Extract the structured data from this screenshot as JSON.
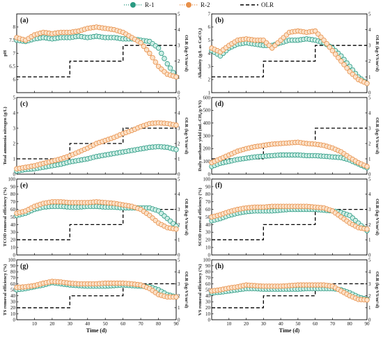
{
  "legend": {
    "items": [
      {
        "label": "R-1",
        "color": "#2a9a82",
        "style": "dotted-marker"
      },
      {
        "label": "R-2",
        "color": "#e8904a",
        "style": "dotted-marker"
      },
      {
        "label": "OLR",
        "color": "#000000",
        "style": "dashed"
      }
    ]
  },
  "colors": {
    "r1": "#2a9a82",
    "r1_light": "#cfeee6",
    "r2": "#e8904a",
    "r2_light": "#fbe1c8",
    "olr": "#000000"
  },
  "olr_step": {
    "x": [
      0,
      30,
      30,
      60,
      60,
      90
    ],
    "y": [
      1,
      1,
      2,
      2,
      3,
      3
    ]
  },
  "chart_data": [
    {
      "type": "line",
      "panel": "(a)",
      "ylabel": "pH",
      "y2label": "OLR (kg-VS/m³/d)",
      "xlim": [
        0,
        90
      ],
      "ylim": [
        5.5,
        8.5
      ],
      "yticks": [
        6.0,
        6.5,
        7.0,
        7.5,
        8.0
      ],
      "y2lim": [
        0,
        5
      ],
      "y2ticks": [
        0,
        1,
        2,
        3,
        4,
        5
      ],
      "x": [
        0,
        5,
        10,
        15,
        20,
        25,
        30,
        35,
        40,
        45,
        50,
        55,
        60,
        65,
        70,
        75,
        80,
        85,
        90
      ],
      "series": [
        {
          "name": "R-1",
          "values": [
            7.5,
            7.45,
            7.55,
            7.6,
            7.55,
            7.6,
            7.6,
            7.65,
            7.6,
            7.65,
            7.6,
            7.6,
            7.55,
            7.55,
            7.5,
            7.45,
            7.2,
            6.6,
            6.1
          ]
        },
        {
          "name": "R-2",
          "values": [
            7.6,
            7.5,
            7.7,
            7.8,
            7.75,
            7.8,
            7.8,
            7.85,
            7.95,
            8.0,
            7.95,
            7.9,
            7.8,
            7.6,
            7.4,
            7.0,
            6.5,
            6.2,
            6.1
          ]
        }
      ]
    },
    {
      "type": "line",
      "panel": "(b)",
      "ylabel": "Alkalinity (g/L as CaCO₃)",
      "y2label": "OLR (kg-VS/m³/d)",
      "xlim": [
        0,
        90
      ],
      "ylim": [
        1,
        7
      ],
      "yticks": [
        1,
        2,
        3,
        4,
        5,
        6,
        7
      ],
      "y2lim": [
        0,
        5
      ],
      "y2ticks": [
        0,
        1,
        2,
        3,
        4,
        5
      ],
      "x": [
        0,
        5,
        10,
        15,
        20,
        25,
        30,
        35,
        40,
        45,
        50,
        55,
        60,
        65,
        70,
        75,
        80,
        85,
        90
      ],
      "series": [
        {
          "name": "R-1",
          "values": [
            4.2,
            3.8,
            4.4,
            4.7,
            4.8,
            4.7,
            4.6,
            4.6,
            4.8,
            5.0,
            5.0,
            5.1,
            5.0,
            4.8,
            4.4,
            3.8,
            3.0,
            2.2,
            1.7
          ]
        },
        {
          "name": "R-2",
          "values": [
            4.4,
            4.1,
            4.6,
            5.0,
            5.1,
            5.0,
            5.0,
            4.4,
            5.0,
            5.6,
            5.7,
            5.6,
            5.7,
            5.0,
            4.2,
            3.4,
            2.6,
            2.0,
            1.7
          ]
        }
      ]
    },
    {
      "type": "line",
      "panel": "(c)",
      "ylabel": "Total ammonia nitrogen (g/L)",
      "y2label": "OLR (kg-VS/m³/d)",
      "xlim": [
        0,
        90
      ],
      "ylim": [
        0,
        5
      ],
      "yticks": [
        0,
        1,
        2,
        3,
        4,
        5
      ],
      "y2lim": [
        0,
        5
      ],
      "y2ticks": [
        0,
        1,
        2,
        3,
        4,
        5
      ],
      "x": [
        0,
        5,
        10,
        15,
        20,
        25,
        30,
        35,
        40,
        45,
        50,
        55,
        60,
        65,
        70,
        75,
        80,
        85,
        90
      ],
      "series": [
        {
          "name": "R-1",
          "values": [
            0.2,
            0.3,
            0.35,
            0.45,
            0.55,
            0.65,
            0.8,
            0.9,
            1.0,
            1.15,
            1.25,
            1.35,
            1.45,
            1.55,
            1.65,
            1.75,
            1.8,
            1.75,
            1.6
          ]
        },
        {
          "name": "R-2",
          "values": [
            0.35,
            0.45,
            0.55,
            0.7,
            0.85,
            1.0,
            1.2,
            1.45,
            1.7,
            2.0,
            2.2,
            2.4,
            2.65,
            2.85,
            3.1,
            3.3,
            3.35,
            3.3,
            3.2
          ]
        }
      ]
    },
    {
      "type": "line",
      "panel": "(d)",
      "ylabel": "Daily methane yield (mL-CH₄/g-VS)",
      "y2label": "OLR (kg-VS/m³/d)",
      "xlim": [
        0,
        90
      ],
      "ylim": [
        0,
        600
      ],
      "yticks": [
        0,
        100,
        200,
        300,
        400,
        500,
        600
      ],
      "y2lim": [
        0,
        5
      ],
      "y2ticks": [
        0,
        1,
        2,
        3,
        4,
        5
      ],
      "x": [
        0,
        5,
        10,
        15,
        20,
        25,
        30,
        35,
        40,
        45,
        50,
        55,
        60,
        65,
        70,
        75,
        80,
        85,
        90
      ],
      "series": [
        {
          "name": "R-1",
          "values": [
            60,
            85,
            100,
            115,
            125,
            135,
            140,
            145,
            150,
            150,
            150,
            145,
            145,
            140,
            135,
            130,
            110,
            80,
            50
          ]
        },
        {
          "name": "R-2",
          "values": [
            90,
            120,
            150,
            180,
            200,
            215,
            225,
            235,
            240,
            245,
            250,
            240,
            235,
            225,
            205,
            175,
            130,
            90,
            60
          ]
        }
      ]
    },
    {
      "type": "line",
      "panel": "(e)",
      "ylabel": "TCOD removal efficiency (%)",
      "y2label": "OLR (kg-VS/m³/d)",
      "xlim": [
        0,
        90
      ],
      "ylim": [
        0,
        100
      ],
      "yticks": [
        0,
        10,
        20,
        30,
        40,
        50,
        60,
        70,
        80,
        90,
        100
      ],
      "y2lim": [
        0,
        5
      ],
      "y2ticks": [
        0,
        1,
        2,
        3,
        4,
        5
      ],
      "x": [
        0,
        5,
        10,
        15,
        20,
        25,
        30,
        35,
        40,
        45,
        50,
        55,
        60,
        65,
        70,
        75,
        80,
        85,
        90
      ],
      "series": [
        {
          "name": "R-1",
          "values": [
            52,
            55,
            60,
            63,
            64,
            64,
            63,
            63,
            64,
            64,
            63,
            63,
            62,
            62,
            62,
            62,
            58,
            48,
            38
          ]
        },
        {
          "name": "R-2",
          "values": [
            55,
            58,
            64,
            68,
            70,
            70,
            69,
            69,
            69,
            70,
            69,
            68,
            66,
            64,
            60,
            52,
            42,
            36,
            34
          ]
        }
      ]
    },
    {
      "type": "line",
      "panel": "(f)",
      "ylabel": "SCOD removal efficiency (%)",
      "y2label": "OLR (kg-VS/m³/d)",
      "xlim": [
        0,
        90
      ],
      "ylim": [
        0,
        100
      ],
      "yticks": [
        0,
        10,
        20,
        30,
        40,
        50,
        60,
        70,
        80,
        90,
        100
      ],
      "y2lim": [
        0,
        5
      ],
      "y2ticks": [
        0,
        1,
        2,
        3,
        4,
        5
      ],
      "x": [
        0,
        5,
        10,
        15,
        20,
        25,
        30,
        35,
        40,
        45,
        50,
        55,
        60,
        65,
        70,
        75,
        80,
        85,
        90
      ],
      "series": [
        {
          "name": "R-1",
          "values": [
            45,
            48,
            52,
            55,
            57,
            58,
            58,
            58,
            59,
            60,
            60,
            60,
            60,
            59,
            58,
            56,
            52,
            42,
            32
          ]
        },
        {
          "name": "R-2",
          "values": [
            50,
            53,
            57,
            60,
            62,
            63,
            63,
            64,
            64,
            64,
            64,
            64,
            63,
            62,
            58,
            50,
            42,
            36,
            34
          ]
        }
      ]
    },
    {
      "type": "line",
      "panel": "(g)",
      "ylabel": "TS removal efficiency (%)",
      "xlabel": "Time (d)",
      "y2label": "OLR (kg-VS/m³/d)",
      "xlim": [
        0,
        90
      ],
      "ylim": [
        0,
        100
      ],
      "yticks": [
        0,
        10,
        20,
        30,
        40,
        50,
        60,
        70,
        80,
        90,
        100
      ],
      "y2lim": [
        0,
        5
      ],
      "y2ticks": [
        0,
        1,
        2,
        3,
        4,
        5
      ],
      "xticks": [
        10,
        20,
        30,
        40,
        50,
        60,
        70,
        80,
        90
      ],
      "x": [
        0,
        5,
        10,
        15,
        20,
        25,
        30,
        35,
        40,
        45,
        50,
        55,
        60,
        65,
        70,
        75,
        80,
        85,
        90
      ],
      "series": [
        {
          "name": "R-1",
          "values": [
            50,
            52,
            55,
            58,
            62,
            60,
            58,
            57,
            56,
            56,
            56,
            57,
            58,
            57,
            56,
            55,
            50,
            42,
            38
          ]
        },
        {
          "name": "R-2",
          "values": [
            54,
            55,
            57,
            61,
            64,
            63,
            61,
            60,
            60,
            60,
            61,
            61,
            61,
            60,
            58,
            52,
            42,
            38,
            38
          ]
        }
      ]
    },
    {
      "type": "line",
      "panel": "(h)",
      "ylabel": "VS removal efficiency (%)",
      "xlabel": "Time (d)",
      "y2label": "OLR (kg-VS/m³/d)",
      "xlim": [
        0,
        90
      ],
      "ylim": [
        0,
        100
      ],
      "yticks": [
        0,
        10,
        20,
        30,
        40,
        50,
        60,
        70,
        80,
        90,
        100
      ],
      "y2lim": [
        0,
        5
      ],
      "y2ticks": [
        0,
        1,
        2,
        3,
        4,
        5
      ],
      "xticks": [
        10,
        20,
        30,
        40,
        50,
        60,
        70,
        80,
        90
      ],
      "x": [
        0,
        5,
        10,
        15,
        20,
        25,
        30,
        35,
        40,
        45,
        50,
        55,
        60,
        65,
        70,
        75,
        80,
        85,
        90
      ],
      "series": [
        {
          "name": "R-1",
          "values": [
            45,
            46,
            48,
            50,
            52,
            52,
            51,
            51,
            51,
            51,
            51,
            52,
            52,
            52,
            52,
            50,
            45,
            38,
            34
          ]
        },
        {
          "name": "R-2",
          "values": [
            48,
            50,
            53,
            55,
            58,
            57,
            56,
            56,
            56,
            57,
            58,
            58,
            58,
            58,
            56,
            48,
            40,
            34,
            33
          ]
        }
      ]
    }
  ]
}
